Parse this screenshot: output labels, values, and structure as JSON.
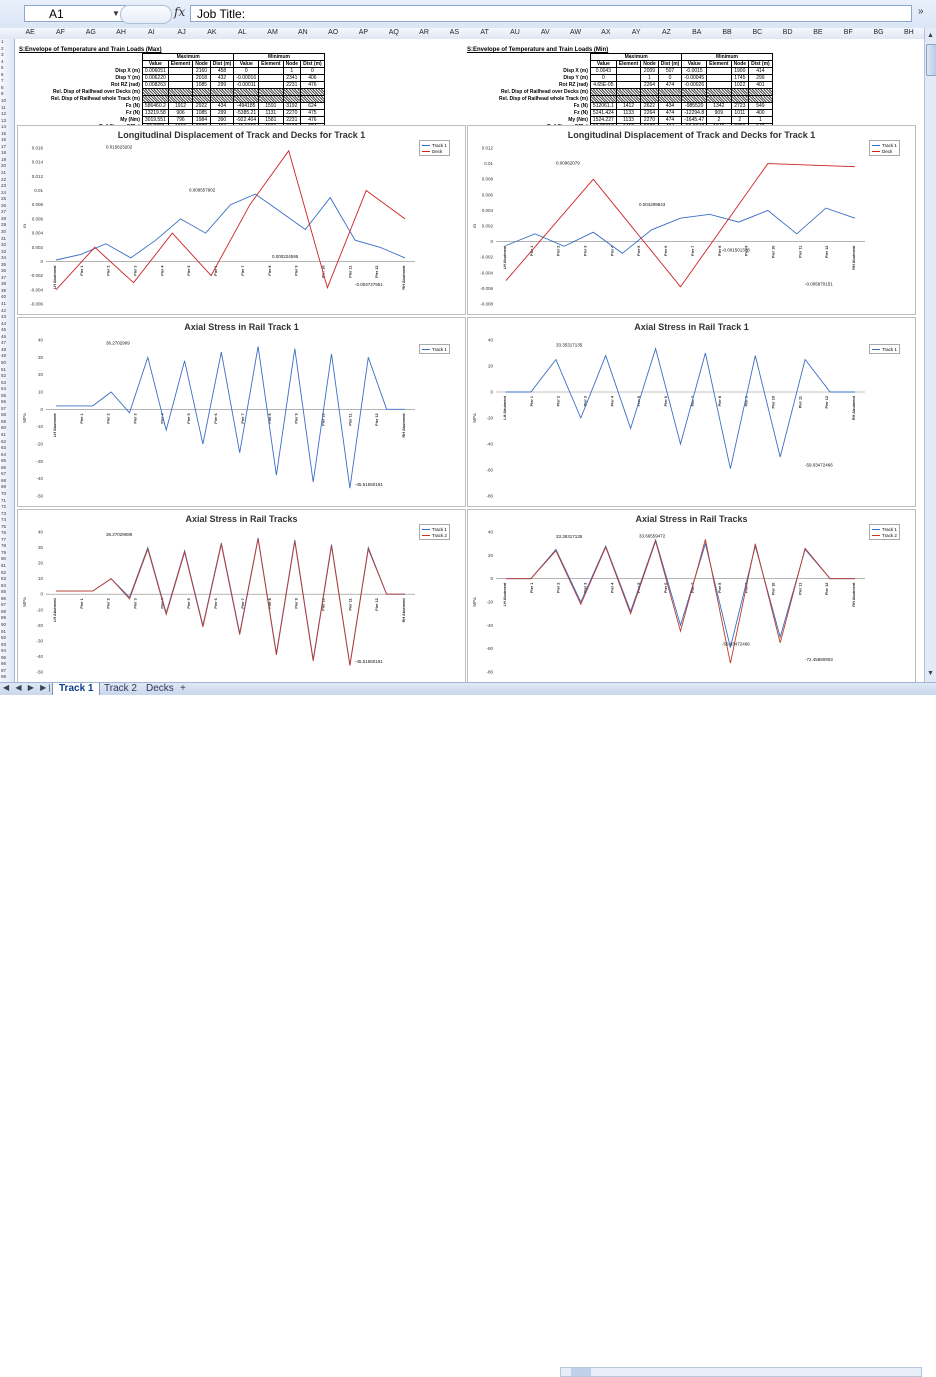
{
  "formula_bar": {
    "name_box": "A1",
    "fx": "fx",
    "content": "Job Title:",
    "expand": "»"
  },
  "columns": [
    "AE",
    "AF",
    "AG",
    "AH",
    "AI",
    "AJ",
    "AK",
    "AL",
    "AM",
    "AN",
    "AO",
    "AP",
    "AQ",
    "AR",
    "AS",
    "AT",
    "AU",
    "AV",
    "AW",
    "AX",
    "AY",
    "AZ",
    "BA",
    "BB",
    "BC",
    "BD",
    "BE",
    "BF",
    "BG",
    "BH"
  ],
  "sheet_tabs": {
    "nav": "◀ ◀ ▶ ▶|",
    "tabs": [
      "Track 1",
      "Track 2",
      "Decks"
    ],
    "active": "Track 1",
    "new_tab": "+"
  },
  "tables": [
    {
      "title": "S:Envelope of Temperature and Train Loads (Max)",
      "group_headers": [
        "Maximum",
        "Minimum"
      ],
      "col_headers": [
        "Value",
        "Element",
        "Node",
        "Dist (m)",
        "Value",
        "Element",
        "Node",
        "Dist (m)"
      ],
      "rows": [
        {
          "label": "Disp X (m)",
          "cells": [
            "0.006051",
            "",
            "2160",
            "458",
            "0",
            "",
            "1",
            "0"
          ]
        },
        {
          "label": "Disp Y (m)",
          "cells": [
            "0.006220",
            "",
            "2018",
            "432",
            "-0.00016",
            "",
            "2341",
            "406"
          ]
        },
        {
          "label": "Rot RZ (rad)",
          "cells": [
            "0.008263",
            "",
            "1085",
            "299",
            "-0.00011",
            "",
            "2231",
            "476"
          ]
        },
        {
          "label": "Rel. Disp of Railhead over Decks (m)",
          "cells": [
            "",
            "",
            "",
            "",
            "",
            "",
            "",
            ""
          ],
          "hatched": true
        },
        {
          "label": "Rel. Disp of Railhead whole Track (m)",
          "cells": [
            "",
            "",
            "",
            "",
            "",
            "",
            "",
            ""
          ],
          "hatched": true
        },
        {
          "label": "Fx (N)",
          "cells": [
            "586460.2",
            "1912",
            "2922",
            "434",
            "-494185",
            "1591",
            "3192",
            "624"
          ]
        },
        {
          "label": "Fz (N)",
          "cells": [
            "13219.58",
            "906",
            "1085",
            "299",
            "-5385.21",
            "1131",
            "2270",
            "475"
          ]
        },
        {
          "label": "My (Nm)",
          "cells": [
            "3019.551",
            "796",
            "1984",
            "390",
            "-922.404",
            "1581",
            "2231",
            "476"
          ]
        },
        {
          "label": "Rail Stress (MPa)",
          "cells": [
            "36.2703",
            "1912",
            "2922",
            "434",
            "-45.5155",
            "1591",
            "3192",
            "624"
          ]
        }
      ]
    },
    {
      "title": "S:Envelope of Temperature and Train Loads (Min)",
      "group_headers": [
        "Maximum",
        "Minimum"
      ],
      "col_headers": [
        "Value",
        "Element",
        "Node",
        "Dist (m)",
        "Value",
        "Element",
        "Node",
        "Dist (m)"
      ],
      "rows": [
        {
          "label": "Disp X (m)",
          "cells": [
            "0.0043",
            "",
            "2009",
            "507",
            "-0.0015",
            "",
            "1900",
            "414"
          ]
        },
        {
          "label": "Disp Y (m)",
          "cells": [
            "0",
            "",
            "1",
            "0",
            "-0.00045",
            "",
            "1745",
            "299"
          ]
        },
        {
          "label": "Rot RZ (rad)",
          "cells": [
            "4.65E-05",
            "",
            "2264",
            "474",
            "-0.00026",
            "",
            "1022",
            "401"
          ]
        },
        {
          "label": "Rel. Disp of Railhead over Decks (m)",
          "cells": [
            "",
            "",
            "",
            "",
            "",
            "",
            "",
            ""
          ],
          "hatched": true
        },
        {
          "label": "Rel. Disp of Railhead whole Track (m)",
          "cells": [
            "",
            "",
            "",
            "",
            "",
            "",
            "",
            ""
          ],
          "hatched": true
        },
        {
          "label": "Fx (N)",
          "cells": [
            "512061.1",
            "1412",
            "2622",
            "434",
            "-985520",
            "1342",
            "2723",
            "549"
          ]
        },
        {
          "label": "Fz (N)",
          "cells": [
            "5241.424",
            "1133",
            "2264",
            "474",
            "-12294.8",
            "909",
            "1011",
            "400"
          ]
        },
        {
          "label": "My (Nm)",
          "cells": [
            "1524.227",
            "1133",
            "2270",
            "474",
            "-1645.47",
            "2",
            "2",
            "1"
          ]
        },
        {
          "label": "Rail Stress (MPa)",
          "cells": [
            "33.35317",
            "1412",
            "2622",
            "434",
            "-59.0347",
            "1342",
            "2723",
            "549"
          ]
        }
      ]
    }
  ],
  "charts": [
    {
      "title": "Longitudinal Displacement of Track and Decks for Track 1",
      "legend": [
        "Track 1",
        "Deck"
      ],
      "y_ticks": [
        "0.016",
        "0.014",
        "0.012",
        "0.01",
        "0.008",
        "0.006",
        "0.004",
        "0.002",
        "0",
        "-0.002",
        "-0.004",
        "-0.006"
      ],
      "ylabel": "m",
      "x_labels": [
        "LH Abutment",
        "Pier 1",
        "Pier 2",
        "Pier 3",
        "Pier 4",
        "Pier 5",
        "Pier 6",
        "Pier 7",
        "Pier 8",
        "Pier 9",
        "Pier 10",
        "Pier 11",
        "Pier 12",
        "RH Abutment"
      ],
      "annotations": [
        "0.015623202",
        "0.009557902",
        "0.000224595",
        "-0.003727951"
      ],
      "chart_data": {
        "type": "line",
        "title": "Longitudinal Displacement of Track and Decks for Track 1",
        "ylabel": "m",
        "ylim": [
          -0.006,
          0.016
        ],
        "series": [
          {
            "name": "Track 1",
            "values": [
              0.0002,
              0.001,
              0.0025,
              0.0005,
              0.003,
              0.006,
              0.004,
              0.008,
              0.0095,
              0.007,
              0.0045,
              0.009,
              0.003,
              0.002,
              0.0005
            ]
          },
          {
            "name": "Deck",
            "values": [
              -0.004,
              0.002,
              -0.003,
              0.004,
              -0.002,
              0.008,
              0.0156,
              -0.0037,
              0.01,
              0.006
            ]
          }
        ]
      }
    },
    {
      "title": "Longitudinal Displacement of Track and Decks for Track 1",
      "legend": [
        "Track 1",
        "Deck"
      ],
      "y_ticks": [
        "0.012",
        "0.01",
        "0.008",
        "0.006",
        "0.004",
        "0.002",
        "0",
        "-0.002",
        "-0.004",
        "-0.006",
        "-0.008"
      ],
      "ylabel": "m",
      "x_labels": [
        "LH Abutment",
        "Pier 1",
        "Pier 2",
        "Pier 3",
        "Pier 4",
        "Pier 5",
        "Pier 6",
        "Pier 7",
        "Pier 8",
        "Pier 9",
        "Pier 10",
        "Pier 11",
        "Pier 12",
        "RH Abutment"
      ],
      "annotations": [
        "0.00962079",
        "0.004299843",
        "-0.001501378",
        "-0.005870151"
      ],
      "chart_data": {
        "type": "line",
        "title": "Longitudinal Displacement of Track and Decks for Track 1",
        "ylabel": "m",
        "ylim": [
          -0.008,
          0.012
        ],
        "series": [
          {
            "name": "Track 1",
            "values": [
              -0.0005,
              0.001,
              -0.0006,
              0.0012,
              -0.0015,
              0.0015,
              0.003,
              0.0035,
              0.0025,
              0.004,
              0.001,
              0.0043,
              0.003
            ]
          },
          {
            "name": "Deck",
            "values": [
              -0.005,
              0.008,
              -0.0058,
              0.01,
              0.0096
            ]
          }
        ]
      }
    },
    {
      "title": "Axial Stress in Rail Track 1",
      "legend": [
        "Track 1"
      ],
      "y_ticks": [
        "40",
        "30",
        "20",
        "10",
        "0",
        "-10",
        "-20",
        "-30",
        "-40",
        "-50"
      ],
      "ylabel": "MPa",
      "x_labels": [
        "LH Abutment",
        "Pier 1",
        "Pier 2",
        "Pier 3",
        "Pier 4",
        "Pier 5",
        "Pier 6",
        "Pier 7",
        "Pier 8",
        "Pier 9",
        "Pier 10",
        "Pier 11",
        "Pier 12",
        "RH Abutment"
      ],
      "annotations": [
        "36.2702909",
        "-45.51550191"
      ],
      "chart_data": {
        "type": "line",
        "title": "Axial Stress in Rail Track 1",
        "ylabel": "MPa",
        "ylim": [
          -50,
          40
        ],
        "series": [
          {
            "name": "Track 1",
            "values": [
              2,
              2,
              2,
              10,
              -2,
              30,
              -12,
              28,
              -20,
              33,
              -25,
              36.27,
              -38,
              35,
              -42,
              32,
              -45.5,
              30,
              0,
              0
            ]
          }
        ]
      }
    },
    {
      "title": "Axial Stress in Rail Track 1",
      "legend": [
        "Track 1"
      ],
      "y_ticks": [
        "40",
        "20",
        "0",
        "-20",
        "-40",
        "-60",
        "-80"
      ],
      "ylabel": "MPa",
      "x_labels": [
        "LH Abutment",
        "Pier 1",
        "Pier 2",
        "Pier 3",
        "Pier 4",
        "Pier 5",
        "Pier 6",
        "Pier 7",
        "Pier 8",
        "Pier 9",
        "Pier 10",
        "Pier 11",
        "Pier 12",
        "RH Abutment"
      ],
      "annotations": [
        "33.35317135",
        "-59.03472466"
      ],
      "chart_data": {
        "type": "line",
        "title": "Axial Stress in Rail Track 1",
        "ylabel": "MPa",
        "ylim": [
          -80,
          40
        ],
        "series": [
          {
            "name": "Track 1",
            "values": [
              0,
              0,
              25,
              -20,
              28,
              -28,
              33.35,
              -40,
              30,
              -59.03,
              28,
              -50,
              25,
              0,
              0
            ]
          }
        ]
      }
    },
    {
      "title": "Axial Stress in Rail Tracks",
      "legend": [
        "Track 1",
        "Track 2"
      ],
      "y_ticks": [
        "40",
        "30",
        "20",
        "10",
        "0",
        "-10",
        "-20",
        "-30",
        "-40",
        "-50"
      ],
      "ylabel": "MPa",
      "x_labels": [
        "LH Abutment",
        "Pier 1",
        "Pier 2",
        "Pier 3",
        "Pier 4",
        "Pier 5",
        "Pier 6",
        "Pier 7",
        "Pier 8",
        "Pier 9",
        "Pier 10",
        "Pier 11",
        "Pier 12",
        "RH Abutment"
      ],
      "annotations": [
        "36.27029089",
        "-45.51550191"
      ],
      "chart_data": {
        "type": "line",
        "title": "Axial Stress in Rail Tracks",
        "ylabel": "MPa",
        "ylim": [
          -50,
          40
        ],
        "series": [
          {
            "name": "Track 1",
            "values": [
              2,
              2,
              2,
              10,
              -2,
              30,
              -12,
              28,
              -20,
              33,
              -25,
              36.27,
              -38,
              35,
              -42,
              32,
              -45.5,
              30,
              0,
              0
            ]
          },
          {
            "name": "Track 2",
            "values": [
              2,
              2,
              2,
              10,
              -3,
              29,
              -13,
              27,
              -21,
              32,
              -26,
              35.6,
              -39,
              34,
              -43,
              31,
              -45.9,
              29,
              0,
              0
            ]
          }
        ]
      }
    },
    {
      "title": "Axial Stress in Rail Tracks",
      "legend": [
        "Track 1",
        "Track 2"
      ],
      "y_ticks": [
        "40",
        "20",
        "0",
        "-20",
        "-40",
        "-60",
        "-80"
      ],
      "ylabel": "MPa",
      "x_labels": [
        "LH Abutment",
        "Pier 1",
        "Pier 2",
        "Pier 3",
        "Pier 4",
        "Pier 5",
        "Pier 6",
        "Pier 7",
        "Pier 8",
        "Pier 9",
        "Pier 10",
        "Pier 11",
        "Pier 12",
        "RH Abutment"
      ],
      "annotations": [
        "33.35317135",
        "33.66559472",
        "-59.03472466",
        "-72.45880903"
      ],
      "chart_data": {
        "type": "line",
        "title": "Axial Stress in Rail Tracks",
        "ylabel": "MPa",
        "ylim": [
          -80,
          40
        ],
        "series": [
          {
            "name": "Track 1",
            "values": [
              0,
              0,
              25,
              -20,
              28,
              -28,
              33.35,
              -40,
              30,
              -59.03,
              28,
              -50,
              25,
              0,
              0
            ]
          },
          {
            "name": "Track 2",
            "values": [
              0,
              0,
              24,
              -22,
              27,
              -30,
              32,
              -45,
              33.67,
              -72.46,
              30,
              -55,
              26,
              0,
              0
            ]
          }
        ]
      }
    }
  ]
}
